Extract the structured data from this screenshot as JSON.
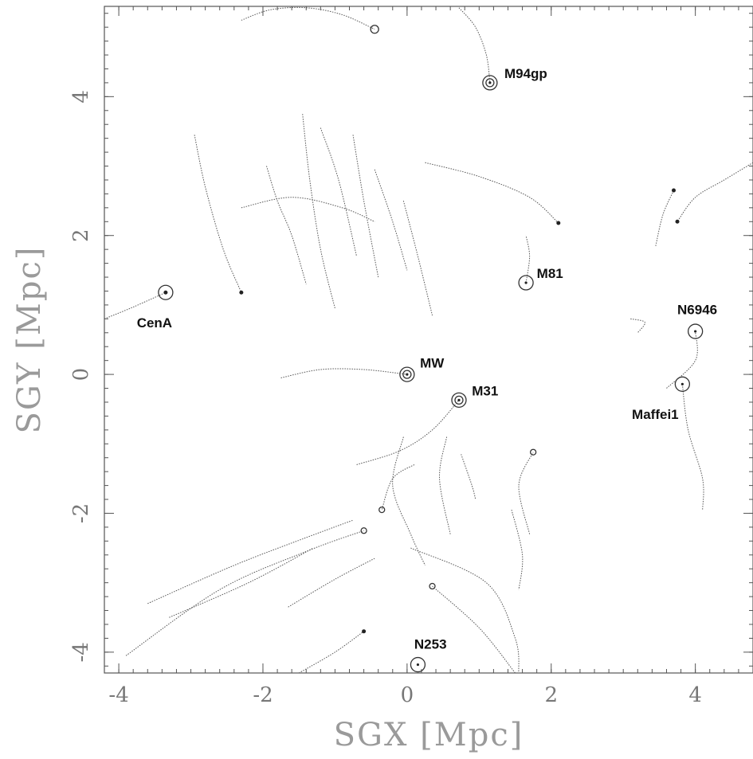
{
  "chart_data": {
    "type": "scatter",
    "title": "",
    "xlabel": "SGX [Mpc]",
    "ylabel": "SGY [Mpc]",
    "xlim": [
      -4.2,
      4.8
    ],
    "ylim": [
      -4.3,
      5.3
    ],
    "x_ticks": [
      -4,
      -2,
      0,
      2,
      4
    ],
    "y_ticks": [
      -4,
      -2,
      0,
      2,
      4
    ],
    "x_tick_labels": [
      "-4",
      "-2",
      "0",
      "2",
      "4"
    ],
    "y_tick_labels": [
      "-4",
      "-2",
      "0",
      "2",
      "4"
    ],
    "grid": false,
    "legend": "none",
    "labeled_galaxies": [
      {
        "name": "M94gp",
        "x": 1.15,
        "y": 4.2,
        "label_dx": 0.2,
        "label_dy": 0.12
      },
      {
        "name": "M81",
        "x": 1.65,
        "y": 1.32,
        "label_dx": 0.15,
        "label_dy": 0.12
      },
      {
        "name": "CenA",
        "x": -3.35,
        "y": 1.18,
        "label_dx": -0.4,
        "label_dy": -0.45
      },
      {
        "name": "MW",
        "x": 0.0,
        "y": 0.0,
        "label_dx": 0.18,
        "label_dy": 0.15
      },
      {
        "name": "M31",
        "x": 0.72,
        "y": -0.37,
        "label_dx": 0.18,
        "label_dy": 0.12
      },
      {
        "name": "N6946",
        "x": 4.0,
        "y": 0.62,
        "label_dx": -0.25,
        "label_dy": 0.3
      },
      {
        "name": "Maffei1",
        "x": 3.82,
        "y": -0.14,
        "label_dx": -0.7,
        "label_dy": -0.45
      },
      {
        "name": "N253",
        "x": 0.15,
        "y": -4.18,
        "label_dx": -0.05,
        "label_dy": 0.28
      }
    ],
    "series": [
      {
        "marker": "circle-large",
        "points": [
          {
            "x": -2.3,
            "y": 5.1
          },
          {
            "x": -1.9,
            "y": 5.25
          },
          {
            "x": -1.4,
            "y": 5.28
          },
          {
            "x": -0.9,
            "y": 5.18
          },
          {
            "x": -0.45,
            "y": 4.97
          }
        ]
      },
      {
        "marker": "circle-large",
        "points": [
          {
            "x": 0.72,
            "y": 5.28
          },
          {
            "x": 0.95,
            "y": 5.0
          },
          {
            "x": 1.1,
            "y": 4.6
          },
          {
            "x": 1.15,
            "y": 4.2
          }
        ]
      },
      {
        "marker": "dot",
        "points": [
          {
            "x": -2.95,
            "y": 3.45
          },
          {
            "x": -2.8,
            "y": 2.7
          },
          {
            "x": -2.55,
            "y": 1.8
          },
          {
            "x": -2.3,
            "y": 1.18
          }
        ]
      },
      {
        "marker": "none",
        "points": [
          {
            "x": -2.3,
            "y": 2.4
          },
          {
            "x": -1.6,
            "y": 2.55
          },
          {
            "x": -0.9,
            "y": 2.4
          },
          {
            "x": -0.45,
            "y": 2.2
          }
        ]
      },
      {
        "marker": "none",
        "points": [
          {
            "x": -1.95,
            "y": 3.0
          },
          {
            "x": -1.8,
            "y": 2.5
          },
          {
            "x": -1.6,
            "y": 2.0
          },
          {
            "x": -1.4,
            "y": 1.3
          }
        ]
      },
      {
        "marker": "none",
        "points": [
          {
            "x": -1.45,
            "y": 3.75
          },
          {
            "x": -1.35,
            "y": 2.8
          },
          {
            "x": -1.2,
            "y": 1.8
          },
          {
            "x": -1.0,
            "y": 0.95
          }
        ]
      },
      {
        "marker": "none",
        "points": [
          {
            "x": -1.2,
            "y": 3.55
          },
          {
            "x": -0.95,
            "y": 2.8
          },
          {
            "x": -0.7,
            "y": 1.7
          }
        ]
      },
      {
        "marker": "none",
        "points": [
          {
            "x": -0.75,
            "y": 3.45
          },
          {
            "x": -0.6,
            "y": 2.5
          },
          {
            "x": -0.4,
            "y": 1.4
          }
        ]
      },
      {
        "marker": "none",
        "points": [
          {
            "x": -0.45,
            "y": 2.95
          },
          {
            "x": -0.2,
            "y": 2.2
          },
          {
            "x": 0.0,
            "y": 1.5
          }
        ]
      },
      {
        "marker": "none",
        "points": [
          {
            "x": -0.05,
            "y": 2.5
          },
          {
            "x": 0.15,
            "y": 1.7
          },
          {
            "x": 0.35,
            "y": 0.85
          }
        ]
      },
      {
        "marker": "dot",
        "points": [
          {
            "x": 0.25,
            "y": 3.05
          },
          {
            "x": 1.0,
            "y": 2.85
          },
          {
            "x": 1.7,
            "y": 2.55
          },
          {
            "x": 2.1,
            "y": 2.18
          }
        ]
      },
      {
        "marker": "none",
        "points": [
          {
            "x": 1.65,
            "y": 1.32
          },
          {
            "x": 1.7,
            "y": 1.7
          },
          {
            "x": 1.65,
            "y": 2.0
          }
        ]
      },
      {
        "marker": "dot",
        "points": [
          {
            "x": -4.2,
            "y": 0.8
          },
          {
            "x": -3.8,
            "y": 0.97
          },
          {
            "x": -3.35,
            "y": 1.18
          }
        ]
      },
      {
        "marker": "dot",
        "points": [
          {
            "x": 3.45,
            "y": 1.85
          },
          {
            "x": 3.55,
            "y": 2.3
          },
          {
            "x": 3.7,
            "y": 2.65
          }
        ]
      },
      {
        "marker": "dot",
        "points": [
          {
            "x": 4.8,
            "y": 3.05
          },
          {
            "x": 4.4,
            "y": 2.8
          },
          {
            "x": 4.0,
            "y": 2.55
          },
          {
            "x": 3.75,
            "y": 2.2
          }
        ]
      },
      {
        "marker": "none",
        "points": [
          {
            "x": 3.1,
            "y": 0.8
          },
          {
            "x": 3.3,
            "y": 0.75
          },
          {
            "x": 3.2,
            "y": 0.6
          }
        ]
      },
      {
        "marker": "none",
        "points": [
          {
            "x": 3.6,
            "y": -0.2
          },
          {
            "x": 4.0,
            "y": 0.2
          },
          {
            "x": 4.0,
            "y": 0.62
          }
        ]
      },
      {
        "marker": "none",
        "points": [
          {
            "x": 3.82,
            "y": -0.14
          },
          {
            "x": 3.9,
            "y": -0.8
          },
          {
            "x": 4.1,
            "y": -1.5
          },
          {
            "x": 4.1,
            "y": -1.95
          }
        ]
      },
      {
        "marker": "circle-large",
        "points": [
          {
            "x": -1.75,
            "y": -0.05
          },
          {
            "x": -1.2,
            "y": 0.07
          },
          {
            "x": -0.6,
            "y": 0.07
          },
          {
            "x": 0.0,
            "y": 0.0
          }
        ]
      },
      {
        "marker": "circle-large",
        "points": [
          {
            "x": -0.7,
            "y": -1.3
          },
          {
            "x": -0.1,
            "y": -1.1
          },
          {
            "x": 0.35,
            "y": -0.8
          },
          {
            "x": 0.72,
            "y": -0.37
          }
        ]
      },
      {
        "marker": "none",
        "points": [
          {
            "x": -0.05,
            "y": -0.9
          },
          {
            "x": -0.2,
            "y": -1.6
          },
          {
            "x": 0.05,
            "y": -2.3
          },
          {
            "x": 0.25,
            "y": -2.75
          }
        ]
      },
      {
        "marker": "none",
        "points": [
          {
            "x": 0.75,
            "y": -1.15
          },
          {
            "x": 0.9,
            "y": -1.6
          },
          {
            "x": 0.95,
            "y": -1.8
          }
        ]
      },
      {
        "marker": "none",
        "points": [
          {
            "x": 0.55,
            "y": -0.9
          },
          {
            "x": 0.45,
            "y": -1.5
          },
          {
            "x": 0.6,
            "y": -2.3
          }
        ]
      },
      {
        "marker": "circle-small",
        "points": [
          {
            "x": 1.7,
            "y": -2.3
          },
          {
            "x": 1.55,
            "y": -1.6
          },
          {
            "x": 1.75,
            "y": -1.12
          }
        ]
      },
      {
        "marker": "none",
        "points": [
          {
            "x": 1.45,
            "y": -1.95
          },
          {
            "x": 1.6,
            "y": -2.6
          },
          {
            "x": 1.55,
            "y": -3.1
          }
        ]
      },
      {
        "marker": "none",
        "points": [
          {
            "x": 0.05,
            "y": -2.5
          },
          {
            "x": 1.1,
            "y": -3.0
          },
          {
            "x": 1.5,
            "y": -3.8
          },
          {
            "x": 1.55,
            "y": -4.3
          }
        ]
      },
      {
        "marker": "circle-small",
        "points": [
          {
            "x": 0.1,
            "y": -1.3
          },
          {
            "x": -0.2,
            "y": -1.5
          },
          {
            "x": -0.35,
            "y": -1.95
          }
        ]
      },
      {
        "marker": "circle-small",
        "points": [
          {
            "x": -3.9,
            "y": -4.05
          },
          {
            "x": -2.6,
            "y": -3.1
          },
          {
            "x": -1.4,
            "y": -2.55
          },
          {
            "x": -0.6,
            "y": -2.25
          }
        ]
      },
      {
        "marker": "none",
        "points": [
          {
            "x": -3.6,
            "y": -3.3
          },
          {
            "x": -2.4,
            "y": -2.75
          },
          {
            "x": -1.4,
            "y": -2.35
          },
          {
            "x": -0.75,
            "y": -2.1
          }
        ]
      },
      {
        "marker": "none",
        "points": [
          {
            "x": -3.3,
            "y": -3.5
          },
          {
            "x": -2.2,
            "y": -3.0
          },
          {
            "x": -1.3,
            "y": -2.5
          }
        ]
      },
      {
        "marker": "none",
        "points": [
          {
            "x": -1.65,
            "y": -3.35
          },
          {
            "x": -1.0,
            "y": -2.95
          },
          {
            "x": -0.45,
            "y": -2.65
          }
        ]
      },
      {
        "marker": "circle-small",
        "points": [
          {
            "x": 1.5,
            "y": -4.3
          },
          {
            "x": 1.0,
            "y": -3.65
          },
          {
            "x": 0.35,
            "y": -3.05
          }
        ]
      },
      {
        "marker": "dot",
        "points": [
          {
            "x": -1.5,
            "y": -4.3
          },
          {
            "x": -1.0,
            "y": -4.0
          },
          {
            "x": -0.6,
            "y": -3.7
          }
        ]
      }
    ]
  }
}
